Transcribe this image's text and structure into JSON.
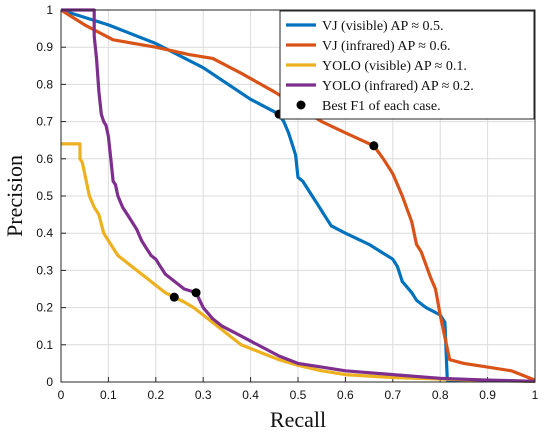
{
  "chart_data": {
    "type": "line",
    "xlabel": "Recall",
    "ylabel": "Precision",
    "xlim": [
      0,
      1
    ],
    "ylim": [
      0,
      1
    ],
    "x_ticks": [
      "0",
      "0.1",
      "0.2",
      "0.3",
      "0.4",
      "0.5",
      "0.6",
      "0.7",
      "0.8",
      "0.9",
      "1"
    ],
    "y_ticks": [
      "0",
      "0.1",
      "0.2",
      "0.3",
      "0.4",
      "0.5",
      "0.6",
      "0.7",
      "0.8",
      "0.9",
      "1"
    ],
    "grid": true,
    "legend_position": "top-right",
    "series": [
      {
        "name": "VJ (visible) AP ≈ 0.5.",
        "color": "#0072BD",
        "points": [
          [
            0,
            1
          ],
          [
            0.1,
            0.96
          ],
          [
            0.2,
            0.91
          ],
          [
            0.3,
            0.845
          ],
          [
            0.4,
            0.76
          ],
          [
            0.46,
            0.72
          ],
          [
            0.47,
            0.7
          ],
          [
            0.48,
            0.67
          ],
          [
            0.49,
            0.63
          ],
          [
            0.495,
            0.61
          ],
          [
            0.5,
            0.55
          ],
          [
            0.51,
            0.54
          ],
          [
            0.53,
            0.5
          ],
          [
            0.54,
            0.48
          ],
          [
            0.56,
            0.44
          ],
          [
            0.57,
            0.42
          ],
          [
            0.6,
            0.4
          ],
          [
            0.65,
            0.37
          ],
          [
            0.7,
            0.33
          ],
          [
            0.71,
            0.31
          ],
          [
            0.72,
            0.27
          ],
          [
            0.74,
            0.24
          ],
          [
            0.75,
            0.22
          ],
          [
            0.77,
            0.2
          ],
          [
            0.8,
            0.18
          ],
          [
            0.81,
            0.16
          ],
          [
            0.815,
            0.005
          ],
          [
            0.85,
            0.005
          ],
          [
            0.9,
            0.004
          ],
          [
            1,
            0.002
          ]
        ]
      },
      {
        "name": "YOLO (visible) AP ≈ 0.1.",
        "color": "#EDB120",
        "points": [
          [
            0,
            0.64
          ],
          [
            0.04,
            0.64
          ],
          [
            0.04,
            0.6
          ],
          [
            0.045,
            0.59
          ],
          [
            0.05,
            0.56
          ],
          [
            0.06,
            0.5
          ],
          [
            0.07,
            0.47
          ],
          [
            0.08,
            0.45
          ],
          [
            0.09,
            0.4
          ],
          [
            0.1,
            0.38
          ],
          [
            0.11,
            0.36
          ],
          [
            0.12,
            0.34
          ],
          [
            0.14,
            0.32
          ],
          [
            0.16,
            0.3
          ],
          [
            0.18,
            0.28
          ],
          [
            0.2,
            0.26
          ],
          [
            0.22,
            0.24
          ],
          [
            0.239,
            0.228
          ],
          [
            0.26,
            0.215
          ],
          [
            0.28,
            0.2
          ],
          [
            0.3,
            0.18
          ],
          [
            0.32,
            0.16
          ],
          [
            0.34,
            0.14
          ],
          [
            0.36,
            0.12
          ],
          [
            0.38,
            0.1
          ],
          [
            0.4,
            0.09
          ],
          [
            0.43,
            0.075
          ],
          [
            0.46,
            0.06
          ],
          [
            0.5,
            0.045
          ],
          [
            0.55,
            0.03
          ],
          [
            0.6,
            0.02
          ],
          [
            0.7,
            0.012
          ],
          [
            0.8,
            0.008
          ],
          [
            0.9,
            0.004
          ],
          [
            1,
            0.002
          ]
        ]
      },
      {
        "name": "VJ (infrared) AP ≈ 0.6.",
        "color": "#D95319",
        "points": [
          [
            0,
            1
          ],
          [
            0.05,
            0.96
          ],
          [
            0.11,
            0.92
          ],
          [
            0.2,
            0.9
          ],
          [
            0.27,
            0.88
          ],
          [
            0.32,
            0.87
          ],
          [
            0.38,
            0.83
          ],
          [
            0.45,
            0.78
          ],
          [
            0.5,
            0.74
          ],
          [
            0.55,
            0.7
          ],
          [
            0.6,
            0.67
          ],
          [
            0.66,
            0.635
          ],
          [
            0.68,
            0.6
          ],
          [
            0.7,
            0.56
          ],
          [
            0.72,
            0.5
          ],
          [
            0.74,
            0.43
          ],
          [
            0.75,
            0.37
          ],
          [
            0.76,
            0.35
          ],
          [
            0.78,
            0.28
          ],
          [
            0.79,
            0.25
          ],
          [
            0.8,
            0.18
          ],
          [
            0.81,
            0.12
          ],
          [
            0.82,
            0.06
          ],
          [
            0.85,
            0.05
          ],
          [
            0.9,
            0.04
          ],
          [
            0.95,
            0.03
          ],
          [
            1,
            0.005
          ]
        ]
      },
      {
        "name": "YOLO (infrared) AP ≈ 0.2.",
        "color": "#7E2F8E",
        "points": [
          [
            0,
            1
          ],
          [
            0.07,
            1
          ],
          [
            0.07,
            0.93
          ],
          [
            0.075,
            0.87
          ],
          [
            0.08,
            0.78
          ],
          [
            0.085,
            0.72
          ],
          [
            0.09,
            0.7
          ],
          [
            0.095,
            0.69
          ],
          [
            0.1,
            0.66
          ],
          [
            0.105,
            0.6
          ],
          [
            0.11,
            0.54
          ],
          [
            0.115,
            0.53
          ],
          [
            0.12,
            0.5
          ],
          [
            0.13,
            0.47
          ],
          [
            0.14,
            0.45
          ],
          [
            0.15,
            0.43
          ],
          [
            0.16,
            0.41
          ],
          [
            0.17,
            0.38
          ],
          [
            0.18,
            0.36
          ],
          [
            0.19,
            0.34
          ],
          [
            0.2,
            0.33
          ],
          [
            0.21,
            0.31
          ],
          [
            0.22,
            0.29
          ],
          [
            0.24,
            0.27
          ],
          [
            0.26,
            0.25
          ],
          [
            0.285,
            0.24
          ],
          [
            0.3,
            0.2
          ],
          [
            0.32,
            0.17
          ],
          [
            0.34,
            0.15
          ],
          [
            0.37,
            0.13
          ],
          [
            0.4,
            0.11
          ],
          [
            0.43,
            0.09
          ],
          [
            0.46,
            0.07
          ],
          [
            0.5,
            0.05
          ],
          [
            0.55,
            0.04
          ],
          [
            0.6,
            0.03
          ],
          [
            0.7,
            0.02
          ],
          [
            0.8,
            0.01
          ],
          [
            0.9,
            0.005
          ],
          [
            1,
            0.002
          ]
        ]
      }
    ],
    "markers": {
      "name": "Best F1 of each case.",
      "color": "#000000",
      "points": [
        [
          0.46,
          0.72
        ],
        [
          0.66,
          0.635
        ],
        [
          0.239,
          0.228
        ],
        [
          0.285,
          0.24
        ]
      ]
    },
    "legend": [
      {
        "label": "VJ (visible) AP ≈ 0.5.",
        "color": "#0072BD",
        "kind": "line"
      },
      {
        "label": "VJ (infrared) AP ≈ 0.6.",
        "color": "#D95319",
        "kind": "line"
      },
      {
        "label": "YOLO (visible) AP ≈ 0.1.",
        "color": "#EDB120",
        "kind": "line"
      },
      {
        "label": "YOLO (infrared) AP ≈ 0.2.",
        "color": "#7E2F8E",
        "kind": "line"
      },
      {
        "label": "Best F1 of each case.",
        "color": "#000000",
        "kind": "marker"
      }
    ]
  }
}
